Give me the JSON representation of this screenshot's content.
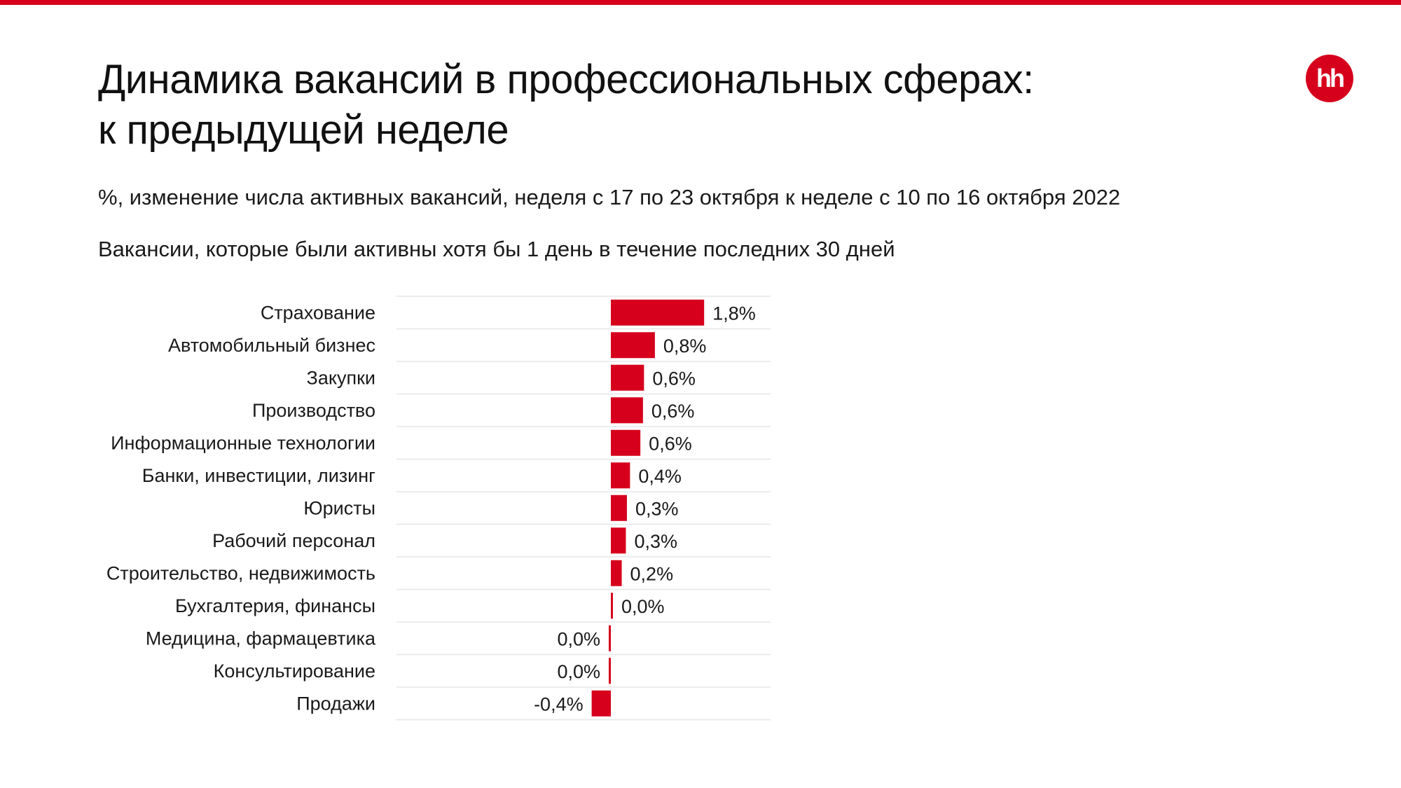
{
  "header": {
    "title_line1": "Динамика вакансий в профессиональных сферах:",
    "title_line2": "к предыдущей неделе",
    "subtitle": "%, изменение числа активных вакансий, неделя с 17 по 23 октября к неделе с 10 по 16 октября 2022",
    "note": "Вакансии, которые были активны хотя бы 1 день в течение последних 30 дней",
    "logo_text": "hh"
  },
  "colors": {
    "accent": "#d6001c",
    "text": "#1a1a1a",
    "row_divider": "#e6e6e6"
  },
  "chart_data": {
    "type": "bar",
    "orientation": "horizontal",
    "categories": [
      "Страхование",
      "Автомобильный бизнес",
      "Закупки",
      "Производство",
      "Информационные технологии",
      "Банки, инвестиции, лизинг",
      "Юристы",
      "Рабочий персонал",
      "Строительство, недвижимость",
      "Бухгалтерия, финансы",
      "Медицина, фармацевтика",
      "Консультирование",
      "Продажи"
    ],
    "values": [
      1.8,
      0.85,
      0.64,
      0.62,
      0.57,
      0.37,
      0.31,
      0.29,
      0.21,
      0.03,
      -0.03,
      -0.04,
      -0.37
    ],
    "labels": [
      "1,8%",
      "0,8%",
      "0,6%",
      "0,6%",
      "0,6%",
      "0,4%",
      "0,3%",
      "0,3%",
      "0,2%",
      "0,0%",
      "0,0%",
      "0,0%",
      "-0,4%"
    ],
    "unit": "%",
    "title": "Динамика вакансий в профессиональных сферах: к предыдущей неделе",
    "xlabel": "",
    "ylabel": "",
    "grid": false,
    "legend": "none"
  }
}
